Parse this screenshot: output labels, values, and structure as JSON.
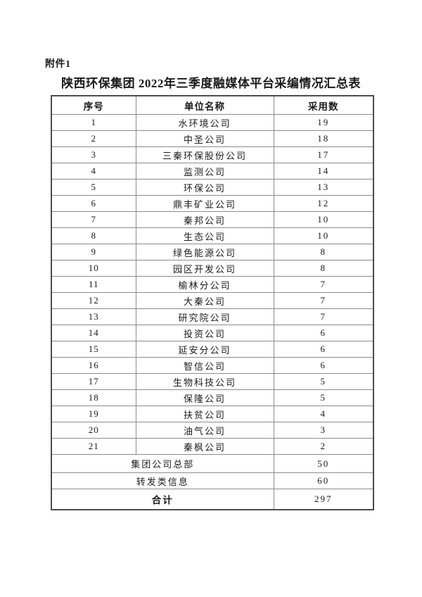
{
  "page": {
    "attachment_label": "附件1",
    "title": "陕西环保集团 2022年三季度融媒体平台采编情况汇总表"
  },
  "table": {
    "headers": [
      "序号",
      "单位名称",
      "采用数"
    ],
    "rows": [
      {
        "no": "1",
        "name": "水环境公司",
        "count": "19"
      },
      {
        "no": "2",
        "name": "中圣公司",
        "count": "18"
      },
      {
        "no": "3",
        "name": "三秦环保股份公司",
        "count": "17"
      },
      {
        "no": "4",
        "name": "监测公司",
        "count": "14"
      },
      {
        "no": "5",
        "name": "环保公司",
        "count": "13"
      },
      {
        "no": "6",
        "name": "鼎丰矿业公司",
        "count": "12"
      },
      {
        "no": "7",
        "name": "秦邦公司",
        "count": "10"
      },
      {
        "no": "8",
        "name": "生态公司",
        "count": "10"
      },
      {
        "no": "9",
        "name": "绿色能源公司",
        "count": "8"
      },
      {
        "no": "10",
        "name": "园区开发公司",
        "count": "8"
      },
      {
        "no": "11",
        "name": "榆林分公司",
        "count": "7"
      },
      {
        "no": "12",
        "name": "大秦公司",
        "count": "7"
      },
      {
        "no": "13",
        "name": "研究院公司",
        "count": "7"
      },
      {
        "no": "14",
        "name": "投资公司",
        "count": "6"
      },
      {
        "no": "15",
        "name": "延安分公司",
        "count": "6"
      },
      {
        "no": "16",
        "name": "智信公司",
        "count": "6"
      },
      {
        "no": "17",
        "name": "生物科技公司",
        "count": "5"
      },
      {
        "no": "18",
        "name": "保隆公司",
        "count": "5"
      },
      {
        "no": "19",
        "name": "扶贫公司",
        "count": "4"
      },
      {
        "no": "20",
        "name": "油气公司",
        "count": "3"
      },
      {
        "no": "21",
        "name": "秦枫公司",
        "count": "2"
      }
    ],
    "summary_rows": [
      {
        "label": "集团公司总部",
        "count": "50"
      },
      {
        "label": "转发类信息",
        "count": "60"
      }
    ],
    "total_row": {
      "label": "合计",
      "count": "297"
    }
  }
}
